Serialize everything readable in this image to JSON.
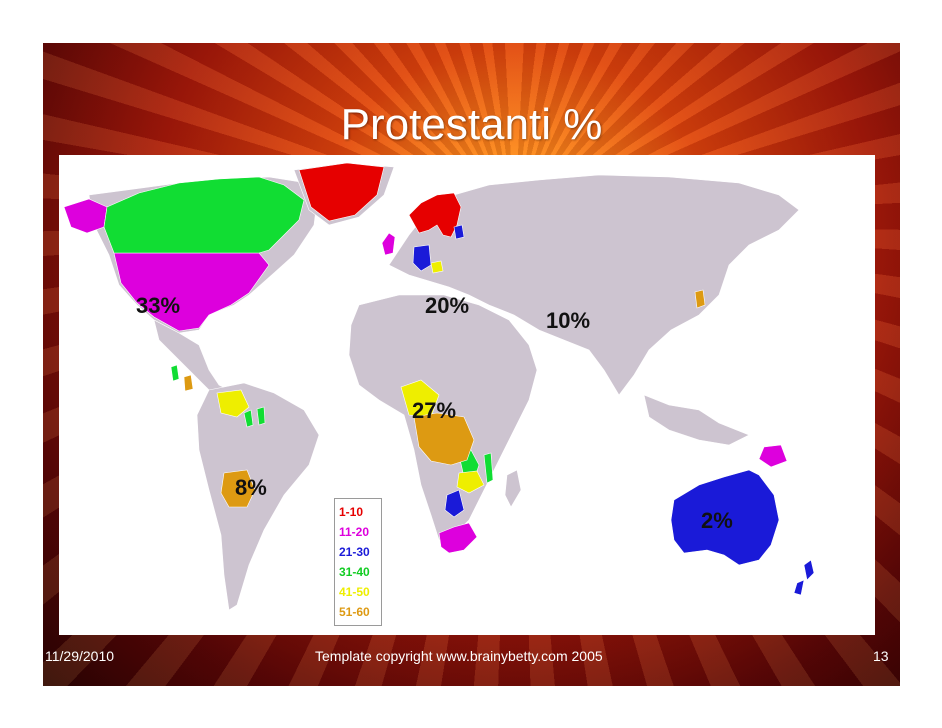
{
  "slide": {
    "title": "Protestanti %",
    "footer_date": "11/29/2010",
    "footer_copyright": "Template copyright www.brainybetty.com 2005",
    "page_number": "13"
  },
  "map": {
    "colors": {
      "none": "#cdc4d0",
      "r1_10": "#e60000",
      "r11_20": "#dd00dd",
      "r21_30": "#1a1ad8",
      "r31_40": "#11dd33",
      "r41_50": "#eeee00",
      "r51_60": "#dd9a12"
    },
    "region_labels": {
      "north_america": "33%",
      "europe": "20%",
      "asia": "10%",
      "africa": "27%",
      "south_america": "8%",
      "oceania": "2%"
    },
    "legend": [
      {
        "label": "1-10",
        "color": "#e60000"
      },
      {
        "label": "11-20",
        "color": "#dd00dd"
      },
      {
        "label": "21-30",
        "color": "#1a1ad8"
      },
      {
        "label": "31-40",
        "color": "#11cc22"
      },
      {
        "label": "41-50",
        "color": "#eeee00"
      },
      {
        "label": "51-60",
        "color": "#dd9a12"
      }
    ]
  }
}
